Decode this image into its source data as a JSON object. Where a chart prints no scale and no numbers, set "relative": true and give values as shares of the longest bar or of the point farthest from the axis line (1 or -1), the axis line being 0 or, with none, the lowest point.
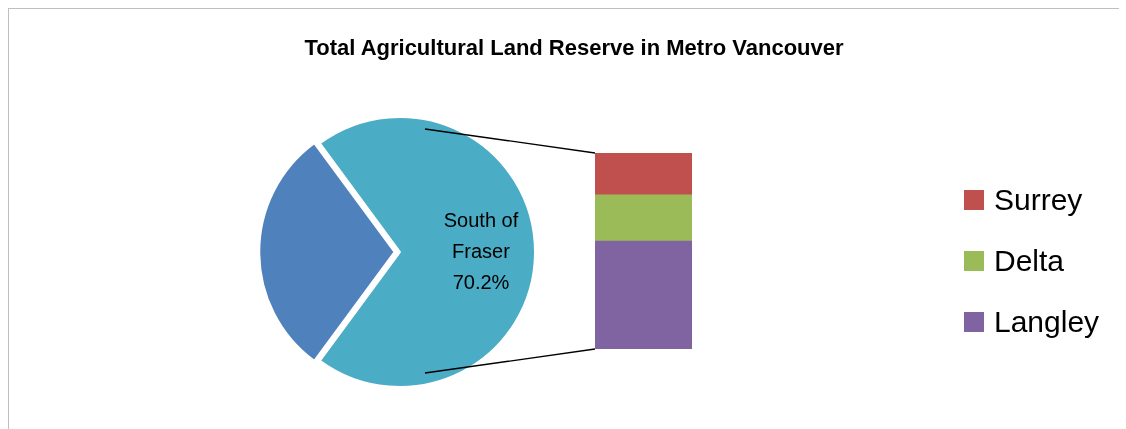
{
  "chart_data": [
    {
      "type": "pie",
      "title": "Total Agricultural Land Reserve in Metro Vancouver",
      "categories": [
        null,
        "South of Fraser"
      ],
      "values": [
        29.8,
        70.2
      ],
      "colors": [
        "#4f81bd",
        "#4bacc6"
      ],
      "value_labels": [
        null,
        "70.2%"
      ]
    },
    {
      "type": "bar",
      "stacked": true,
      "relative": true,
      "categories": [
        null
      ],
      "legend": "right",
      "series": [
        {
          "name": "Langley",
          "color": "#8064a2",
          "values": [
            0.551
          ]
        },
        {
          "name": "Delta",
          "color": "#9bbb59",
          "values": [
            0.235
          ]
        },
        {
          "name": "Surrey",
          "color": "#c0504d",
          "values": [
            0.214
          ]
        }
      ]
    }
  ]
}
